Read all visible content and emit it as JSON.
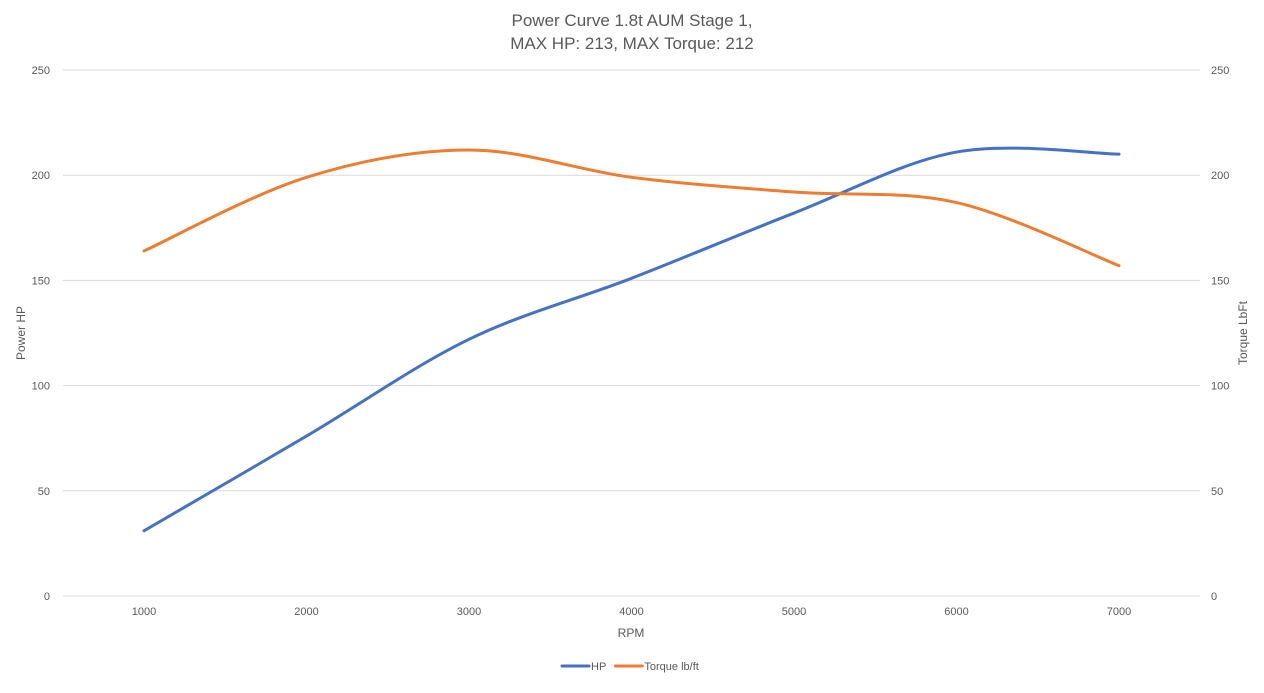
{
  "chart_data": {
    "type": "line",
    "title_line1": "Power Curve 1.8t AUM Stage 1,",
    "title_line2": "MAX HP: 213, MAX Torque: 212",
    "xlabel": "RPM",
    "ylabel_left": "Power HP",
    "ylabel_right": "Torque LbFt",
    "x": [
      1000,
      2000,
      3000,
      4000,
      5000,
      6000,
      7000
    ],
    "x_tick_labels": [
      "1000",
      "2000",
      "3000",
      "4000",
      "5000",
      "6000",
      "7000"
    ],
    "ylim_left": [
      0,
      250
    ],
    "ylim_right": [
      0,
      250
    ],
    "y_tick_labels": [
      "0",
      "50",
      "100",
      "150",
      "200",
      "250"
    ],
    "grid": true,
    "legend_position": "bottom",
    "series": [
      {
        "name": "HP",
        "axis": "left",
        "color": "#4472C4",
        "values": [
          31,
          76,
          122,
          151,
          182,
          211,
          210
        ]
      },
      {
        "name": "Torque lb/ft",
        "axis": "right",
        "color": "#ED7D31",
        "values": [
          164,
          199,
          212,
          199,
          192,
          187,
          157
        ]
      }
    ]
  }
}
